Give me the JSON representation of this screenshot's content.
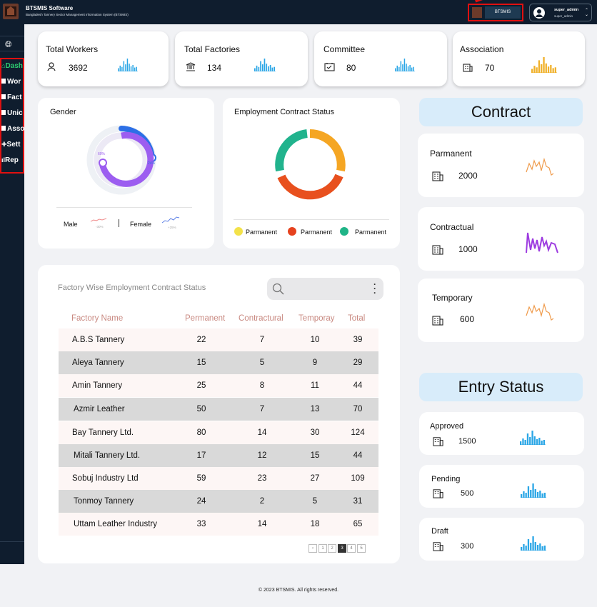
{
  "app": {
    "title": "BTSMIS Software",
    "subtitle": "Bangladesh Tannery Sector Management Information System (BTSMIS)",
    "badge": "BTSMIS",
    "user_name": "super_admin",
    "user_role": "super_admin"
  },
  "sidebar": {
    "items": [
      {
        "label": "Dash",
        "icon": "home-icon"
      },
      {
        "label": "Wor",
        "icon": "worker-icon"
      },
      {
        "label": "Fact",
        "icon": "factory-icon"
      },
      {
        "label": "Unic",
        "icon": "union-icon"
      },
      {
        "label": "Asso",
        "icon": "association-icon"
      },
      {
        "label": "Sett",
        "icon": "settings-icon"
      },
      {
        "label": "Rep",
        "icon": "report-icon"
      }
    ]
  },
  "stats": [
    {
      "label": "Total Workers",
      "value": "3692",
      "icon": "person-icon",
      "color": "#2aa6e6"
    },
    {
      "label": "Total Factories",
      "value": "134",
      "icon": "bank-icon",
      "color": "#2aa6e6"
    },
    {
      "label": "Committee",
      "value": "80",
      "icon": "calendar-icon",
      "color": "#2aa6e6"
    },
    {
      "label": "Association",
      "value": "70",
      "icon": "building-icon",
      "color": "#f0b12b"
    }
  ],
  "gender": {
    "title": "Gender",
    "female_pct": "60%",
    "male_pct": "24%",
    "male_label": "Male",
    "male_change": "-30%",
    "female_label": "Female",
    "female_change": "+25%"
  },
  "employment": {
    "title": "Employment Contract Status",
    "legend": [
      {
        "label": "Parmanent",
        "color": "#f3e24a"
      },
      {
        "label": "Parmanent",
        "color": "#e6421e"
      },
      {
        "label": "Parmanent",
        "color": "#1fb487"
      }
    ]
  },
  "table": {
    "title": "Factory Wise Employment Contract Status",
    "headers": [
      "Factory Name",
      "Permanent",
      "Contractural",
      "Temporay",
      "Total"
    ],
    "rows": [
      [
        "A.B.S Tannery",
        "22",
        "7",
        "10",
        "39"
      ],
      [
        "Aleya Tannery",
        "15",
        "5",
        "9",
        "29"
      ],
      [
        "Amin Tannery",
        "25",
        "8",
        "11",
        "44"
      ],
      [
        "Azmir Leather",
        "50",
        "7",
        "13",
        "70"
      ],
      [
        "Bay Tannery Ltd.",
        "80",
        "14",
        "30",
        "124"
      ],
      [
        "Mitali Tannery Ltd.",
        "17",
        "12",
        "15",
        "44"
      ],
      [
        "Sobuj Industry Ltd",
        "59",
        "23",
        "27",
        "109"
      ],
      [
        "Tonmoy Tannery",
        "24",
        "2",
        "5",
        "31"
      ],
      [
        "Uttam Leather Industry",
        "33",
        "14",
        "18",
        "65"
      ]
    ],
    "pages": [
      "1",
      "2",
      "3",
      "4",
      "5"
    ],
    "current_page": "3"
  },
  "contract": {
    "title": "Contract",
    "items": [
      {
        "label": "Parmanent",
        "value": "2000",
        "color": "#ef9a4a"
      },
      {
        "label": "Contractual",
        "value": "1000",
        "color": "#9d3be0"
      },
      {
        "label": "Temporary",
        "value": "600",
        "color": "#ef9a4a"
      }
    ]
  },
  "entry": {
    "title": "Entry Status",
    "items": [
      {
        "label": "Approved",
        "value": "1500"
      },
      {
        "label": "Pending",
        "value": "500"
      },
      {
        "label": "Draft",
        "value": "300"
      }
    ]
  },
  "footer": {
    "text": "© 2023 BTSMIS. All rights reserved."
  }
}
